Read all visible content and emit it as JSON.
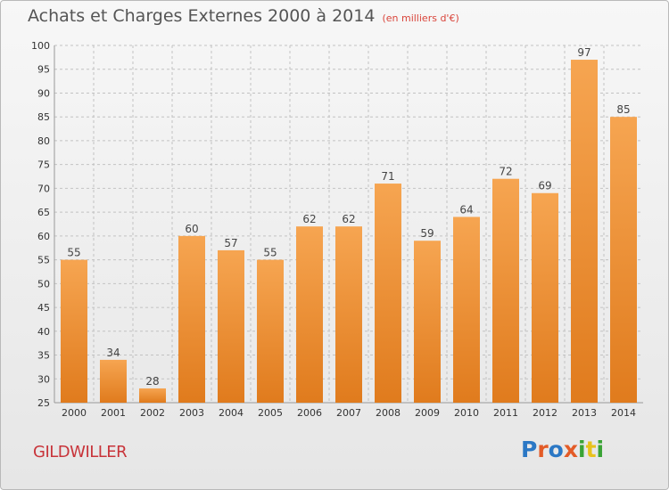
{
  "header": {
    "title": "Achats et Charges Externes 2000 à 2014",
    "unit": "(en milliers d'€)"
  },
  "footer": {
    "commune": "GILDWILLER",
    "logo_text": "Proxiti",
    "logo_colors": [
      "#2b78c5",
      "#e35b27",
      "#2b78c5",
      "#e35b27",
      "#3aa335",
      "#e8c21c",
      "#3aa335"
    ]
  },
  "colors": {
    "bar_light": "#f6a551",
    "bar_dark": "#e07b1d",
    "grid": "#c2c2c2",
    "axis_text": "#333333"
  },
  "chart_data": {
    "type": "bar",
    "title": "Achats et Charges Externes 2000 à 2014",
    "xlabel": "",
    "ylabel": "",
    "categories": [
      "2000",
      "2001",
      "2002",
      "2003",
      "2004",
      "2005",
      "2006",
      "2007",
      "2008",
      "2009",
      "2010",
      "2011",
      "2012",
      "2013",
      "2014"
    ],
    "values": [
      55,
      34,
      28,
      60,
      57,
      55,
      62,
      62,
      71,
      59,
      64,
      72,
      69,
      97,
      85
    ],
    "ylim": [
      25,
      100
    ],
    "yticks": [
      25,
      30,
      35,
      40,
      45,
      50,
      55,
      60,
      65,
      70,
      75,
      80,
      85,
      90,
      95,
      100
    ],
    "grid": true,
    "legend": "none"
  }
}
